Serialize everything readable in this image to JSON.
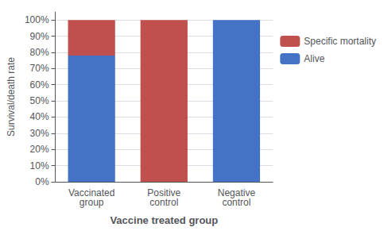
{
  "chart_data": {
    "type": "bar",
    "stacked": true,
    "categories": [
      "Vaccinated\ngroup",
      "Positive\ncontrol",
      "Negative\ncontrol"
    ],
    "series": [
      {
        "name": "Alive",
        "color": "#4472C4",
        "values": [
          78,
          0,
          100
        ]
      },
      {
        "name": "Specific mortality",
        "color": "#C0504D",
        "values": [
          22,
          100,
          0
        ]
      }
    ],
    "xlabel": "Vaccine treated group",
    "ylabel": "Survival/death rate",
    "ylim": [
      0,
      105
    ],
    "yticks": [
      {
        "value": 0,
        "label": "0%"
      },
      {
        "value": 10,
        "label": "10%"
      },
      {
        "value": 20,
        "label": "20%"
      },
      {
        "value": 30,
        "label": "30%"
      },
      {
        "value": 40,
        "label": "40%"
      },
      {
        "value": 50,
        "label": "50%"
      },
      {
        "value": 60,
        "label": "60%"
      },
      {
        "value": 70,
        "label": "70%"
      },
      {
        "value": 80,
        "label": "80%"
      },
      {
        "value": 90,
        "label": "90%"
      },
      {
        "value": 100,
        "label": "100%"
      }
    ],
    "grid": true,
    "legend": "right"
  }
}
